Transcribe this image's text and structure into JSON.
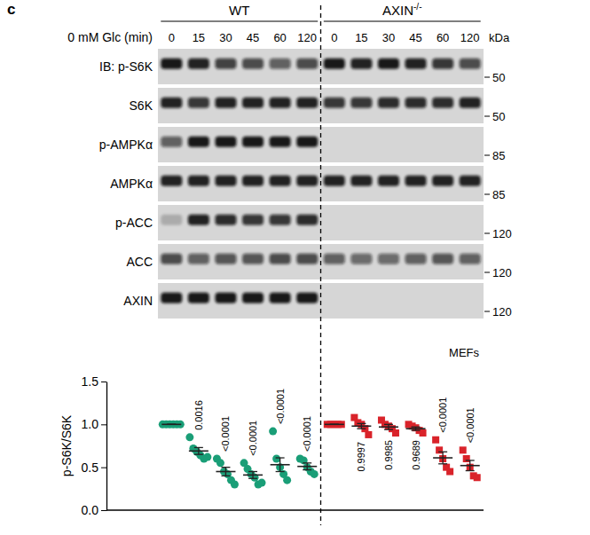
{
  "panel_label": "c",
  "blot": {
    "groups": [
      "WT",
      "AXIN-/-"
    ],
    "condition": "0 mM Glc (min)",
    "lanes": [
      0,
      15,
      30,
      45,
      60,
      120
    ],
    "unit": "kDa",
    "rows": [
      {
        "label": "IB: p-S6K",
        "marker": 50,
        "bands": [
          0.95,
          0.9,
          0.75,
          0.7,
          0.6,
          0.7,
          0.95,
          0.9,
          0.95,
          0.9,
          0.8,
          0.7
        ]
      },
      {
        "label": "S6K",
        "marker": 50,
        "bands": [
          0.9,
          0.8,
          0.9,
          0.9,
          0.9,
          0.9,
          0.8,
          0.8,
          0.85,
          0.85,
          0.85,
          0.9
        ]
      },
      {
        "label": "p-AMPKα",
        "marker": 85,
        "bands": [
          0.6,
          0.95,
          0.95,
          0.95,
          0.95,
          0.95,
          0,
          0,
          0,
          0,
          0,
          0
        ]
      },
      {
        "label": "AMPKα",
        "marker": 85,
        "bands": [
          0.9,
          0.9,
          0.9,
          0.9,
          0.9,
          0.9,
          0.9,
          0.9,
          0.9,
          0.9,
          0.9,
          0.9
        ]
      },
      {
        "label": "p-ACC",
        "marker": 120,
        "bands": [
          0.2,
          0.9,
          0.85,
          0.8,
          0.8,
          0.85,
          0,
          0,
          0,
          0,
          0,
          0
        ]
      },
      {
        "label": "ACC",
        "marker": 120,
        "bands": [
          0.7,
          0.6,
          0.65,
          0.65,
          0.7,
          0.7,
          0.6,
          0.55,
          0.55,
          0.6,
          0.65,
          0.6
        ]
      },
      {
        "label": "AXIN",
        "marker": 120,
        "bands": [
          0.95,
          0.95,
          0.95,
          0.95,
          0.95,
          0.95,
          0,
          0,
          0,
          0,
          0,
          0
        ]
      }
    ]
  },
  "cell_label": "MEFs",
  "chart_data": {
    "type": "scatter",
    "y_label": "p-S6K/S6K",
    "categories": [
      null,
      null,
      null,
      null,
      null,
      null,
      null,
      null,
      null,
      null,
      null,
      null
    ],
    "ylim": [
      0,
      1.5
    ],
    "yticks": [
      {
        "value": 0,
        "label": "0.0"
      },
      {
        "value": 0.5,
        "label": "0.5"
      },
      {
        "value": 1,
        "label": "1.0"
      },
      {
        "value": 1.5,
        "label": "1.5"
      }
    ],
    "tick_labels": "y",
    "grid": false,
    "series": [
      {
        "color": "#1a9e77",
        "marker": "circle",
        "values": [
          1.0,
          0.69,
          0.45,
          0.41,
          0.53,
          0.51,
          null,
          null,
          null,
          null,
          null,
          null
        ],
        "error": [
          0,
          0.04,
          0.05,
          0.04,
          0.08,
          0.04,
          null,
          null,
          null,
          null,
          null,
          null
        ],
        "points": [
          [
            1.0,
            1.0,
            1.0,
            1.0,
            1.0,
            1.0
          ],
          [
            0.85,
            0.72,
            0.68,
            0.64,
            0.6,
            0.62
          ],
          [
            0.6,
            0.55,
            0.45,
            0.42,
            0.35,
            0.3
          ],
          [
            0.55,
            0.48,
            0.42,
            0.38,
            0.3,
            0.32
          ],
          [
            0.92,
            0.6,
            0.5,
            0.42,
            0.35
          ],
          [
            0.6,
            0.58,
            0.5,
            0.45,
            0.42
          ],
          null,
          null,
          null,
          null,
          null,
          null
        ],
        "p_values": [
          null,
          "0.0016",
          "<0.0001",
          "<0.0001",
          "<0.0001",
          "<0.0001",
          null,
          null,
          null,
          null,
          null,
          null
        ]
      },
      {
        "color": "#d9232a",
        "marker": "square",
        "values": [
          null,
          null,
          null,
          null,
          null,
          null,
          1.0,
          0.98,
          0.97,
          0.95,
          0.61,
          0.52
        ],
        "error": [
          null,
          null,
          null,
          null,
          null,
          null,
          0,
          0.03,
          0.03,
          0.02,
          0.07,
          0.06
        ],
        "points": [
          null,
          null,
          null,
          null,
          null,
          null,
          [
            1.0,
            1.0,
            1.0,
            1.0,
            1.0
          ],
          [
            1.08,
            1.02,
            1.0,
            0.95,
            0.88
          ],
          [
            1.05,
            1.0,
            0.98,
            0.95,
            0.9
          ],
          [
            1.0,
            0.98,
            0.96,
            0.93,
            0.9
          ],
          [
            0.82,
            0.7,
            0.6,
            0.5,
            0.45
          ],
          [
            0.7,
            0.6,
            0.5,
            0.4,
            0.38
          ]
        ],
        "p_values": [
          null,
          null,
          null,
          null,
          null,
          null,
          null,
          "0.9997",
          "0.9985",
          "0.9689",
          "<0.0001",
          "<0.0001"
        ]
      }
    ]
  }
}
